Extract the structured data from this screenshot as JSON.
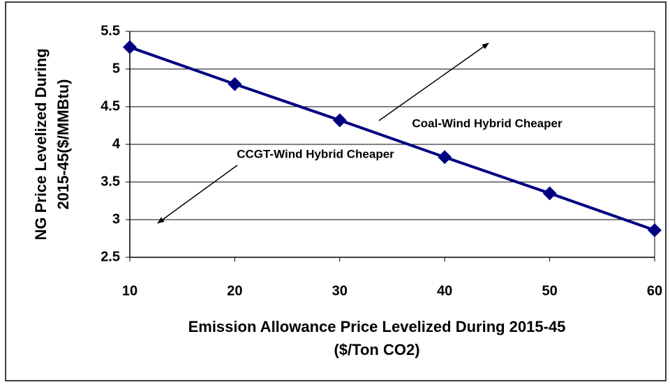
{
  "chart_data": {
    "type": "line",
    "x_label": [
      "Emission Allowance Price Levelized During 2015-45",
      "($/Ton CO2)"
    ],
    "y_label": [
      "NG Price Levelized During",
      "2015-45($/MMBtu)"
    ],
    "annotations": [
      "Coal-Wind Hybrid Cheaper",
      "CCGT-Wind Hybrid Cheaper"
    ],
    "x": [
      10,
      20,
      30,
      40,
      50,
      60
    ],
    "values": [
      5.29,
      4.8,
      4.32,
      3.83,
      3.35,
      2.86
    ],
    "color": "#000080",
    "xlim": [
      10,
      60
    ],
    "xticks": [
      10,
      20,
      30,
      40,
      50,
      60
    ],
    "ylim": [
      2.5,
      5.5
    ],
    "yticks": [
      2.5,
      3,
      3.5,
      4,
      4.5,
      5,
      5.5
    ],
    "grid": true
  }
}
